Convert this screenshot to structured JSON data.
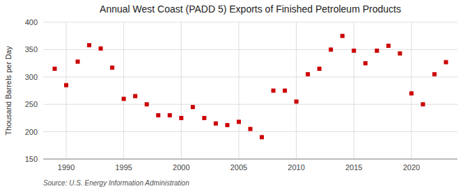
{
  "chart_data": {
    "type": "scatter",
    "title": "Annual West Coast (PADD 5) Exports of Finished Petroleum Products",
    "y_label": "Thousand Barrels per Day",
    "source": "Source: U.S. Energy Information Administration",
    "x": [
      1989,
      1990,
      1991,
      1992,
      1993,
      1994,
      1995,
      1996,
      1997,
      1998,
      1999,
      2000,
      2001,
      2002,
      2003,
      2004,
      2005,
      2006,
      2007,
      2008,
      2009,
      2010,
      2011,
      2012,
      2013,
      2014,
      2015,
      2016,
      2017,
      2018,
      2019,
      2020,
      2021,
      2022,
      2023
    ],
    "values": [
      315,
      285,
      328,
      358,
      352,
      317,
      260,
      265,
      250,
      230,
      230,
      225,
      245,
      225,
      215,
      212,
      218,
      205,
      190,
      275,
      275,
      255,
      305,
      315,
      350,
      375,
      348,
      325,
      348,
      357,
      343,
      270,
      250,
      305,
      327
    ],
    "color": "#cc0000",
    "marker": "square",
    "xlim": [
      1988,
      2024
    ],
    "ylim": [
      150,
      400
    ],
    "xticks": [
      1990,
      1995,
      2000,
      2005,
      2010,
      2015,
      2020
    ],
    "yticks": [
      150,
      200,
      250,
      300,
      350,
      400
    ],
    "grid": true
  }
}
